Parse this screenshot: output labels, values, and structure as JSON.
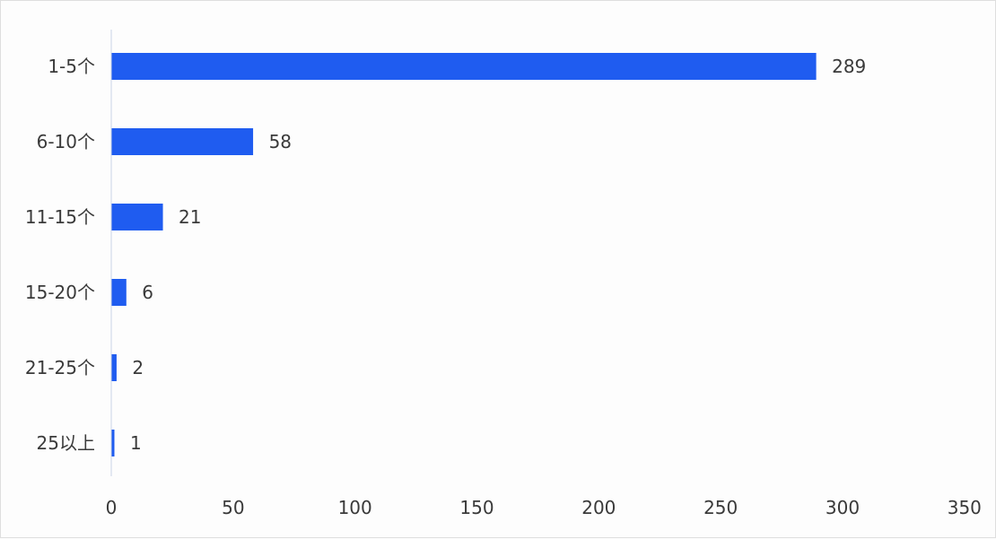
{
  "chart_data": {
    "type": "bar",
    "orientation": "horizontal",
    "categories": [
      "1-5个",
      "6-10个",
      "11-15个",
      "15-20个",
      "21-25个",
      "25以上"
    ],
    "values": [
      289,
      58,
      21,
      6,
      2,
      1
    ],
    "xticks": [
      0,
      50,
      100,
      150,
      200,
      250,
      300,
      350
    ],
    "xlim": [
      0,
      350
    ],
    "title": "",
    "xlabel": "",
    "ylabel": "",
    "grid": false,
    "legend": "none",
    "data_labels": true,
    "bar_color": "#1f5cf0",
    "text_color": "#3a3a3a",
    "axis_color": "#c9d3e6"
  }
}
